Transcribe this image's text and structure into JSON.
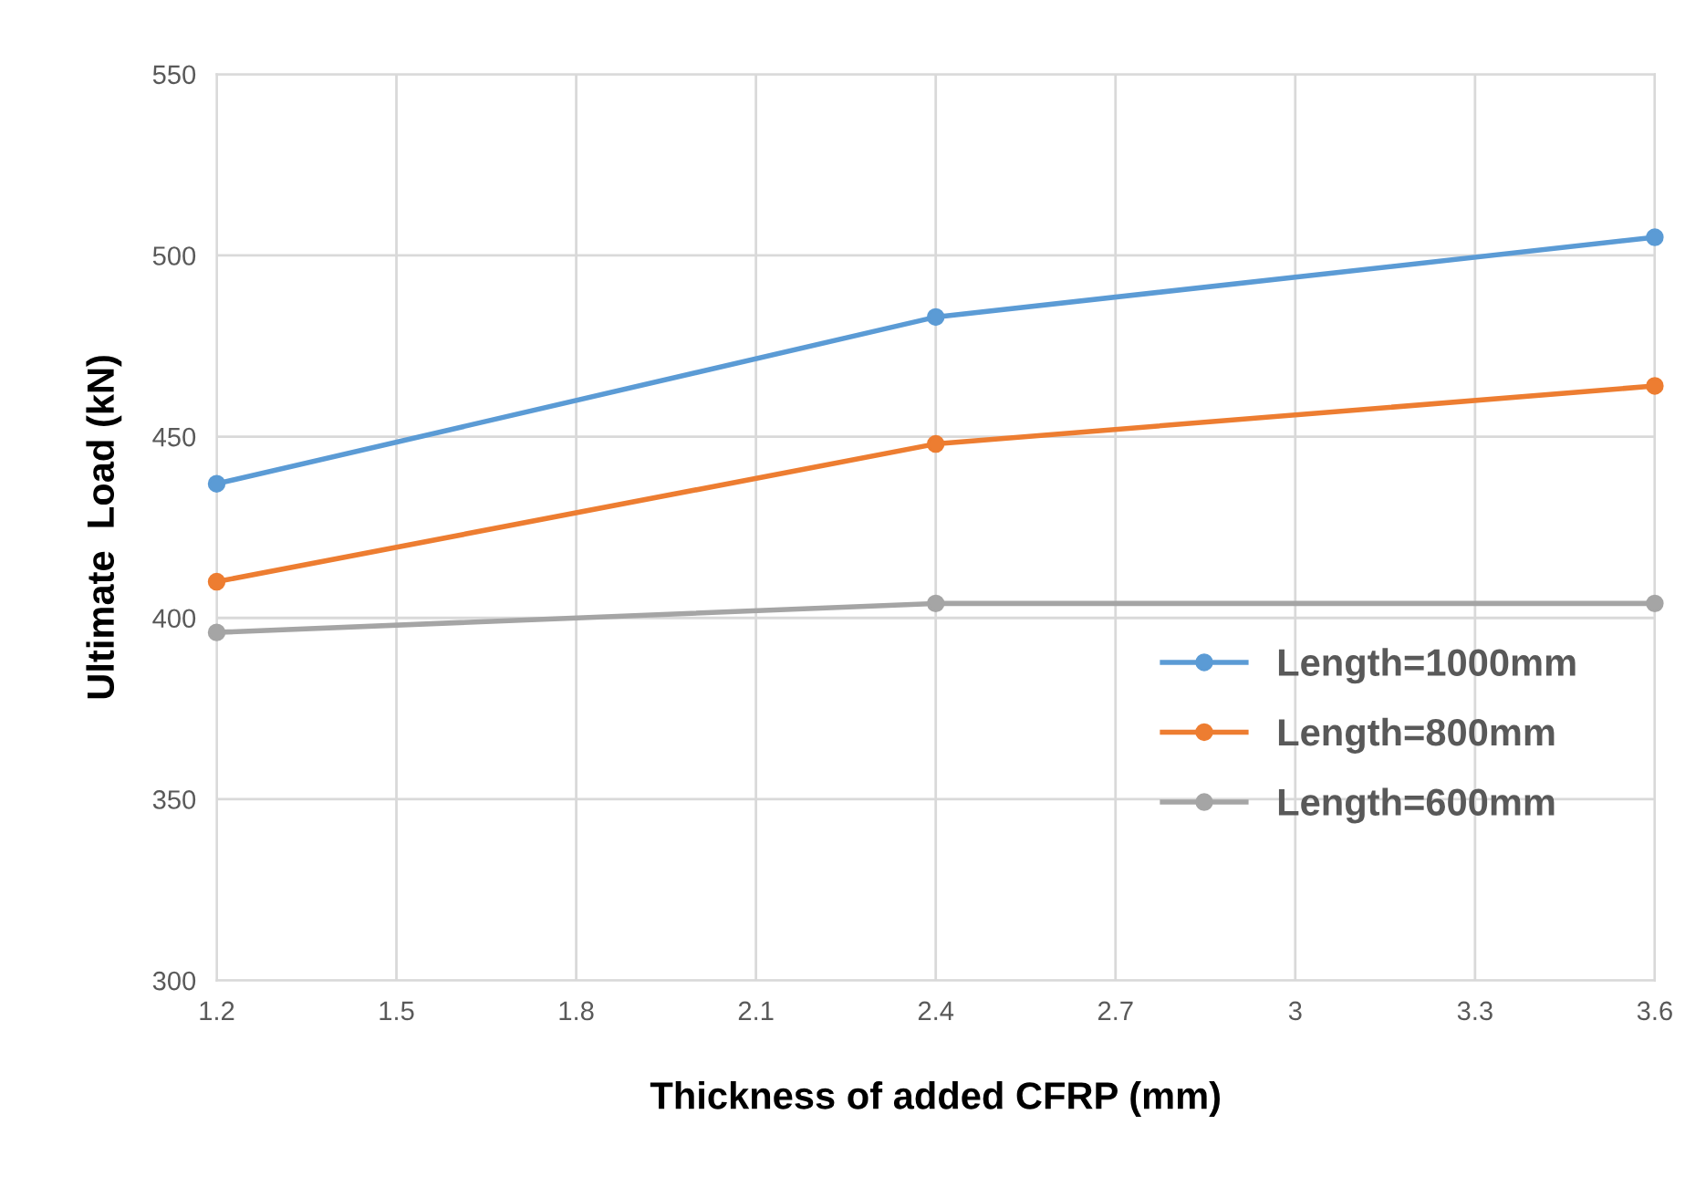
{
  "chart_data": {
    "type": "line",
    "xlabel": "Thickness of added CFRP (mm)",
    "ylabel": "Ultimate  Load (kN)",
    "x": [
      1.2,
      2.4,
      3.6
    ],
    "series": [
      {
        "name": "Length=1000mm",
        "color": "#5b9bd5",
        "values": [
          437,
          483,
          505
        ]
      },
      {
        "name": "Length=800mm",
        "color": "#ed7d31",
        "values": [
          410,
          448,
          464
        ]
      },
      {
        "name": "Length=600mm",
        "color": "#a5a5a5",
        "values": [
          396,
          404,
          404
        ]
      }
    ],
    "xlim": [
      1.2,
      3.6
    ],
    "xticks": [
      1.2,
      1.5,
      1.8,
      2.1,
      2.4,
      2.7,
      3,
      3.3,
      3.6
    ],
    "ylim": [
      300,
      550
    ],
    "yticks": [
      300,
      350,
      400,
      450,
      500,
      550
    ],
    "grid": true,
    "legend": "right",
    "marker": "circle",
    "line_style": "solid"
  }
}
